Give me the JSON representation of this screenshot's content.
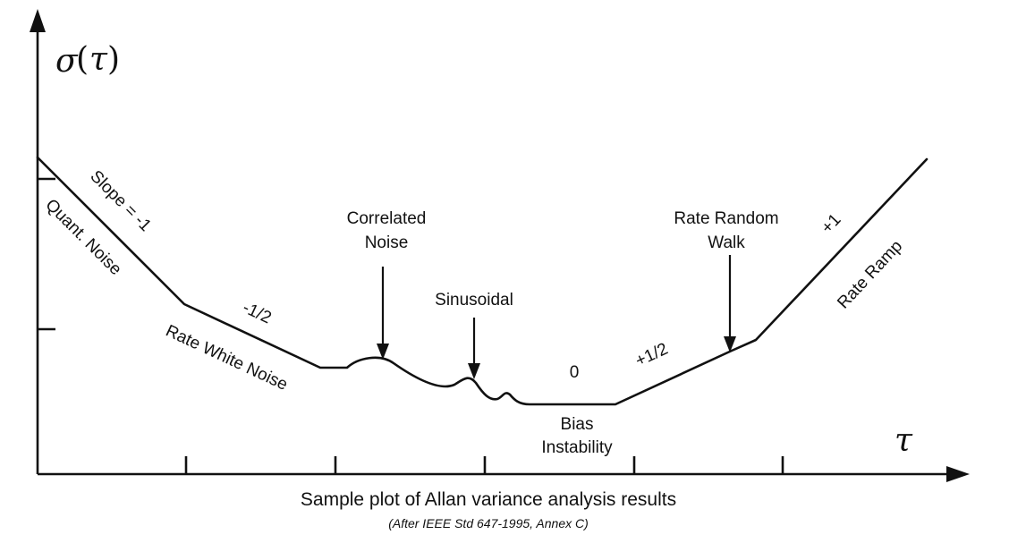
{
  "axes": {
    "y_symbol": "σ",
    "y_arg": "τ",
    "x_symbol": "τ"
  },
  "segments": {
    "slope_neg1": "Slope = -1",
    "quant_noise": "Quant. Noise",
    "slope_neg_half": "-1/2",
    "rate_white_noise": "Rate White Noise",
    "correlated_noise_1": "Correlated",
    "correlated_noise_2": "Noise",
    "sinusoidal": "Sinusoidal",
    "slope_zero": "0",
    "bias_instability_1": "Bias",
    "bias_instability_2": "Instability",
    "slope_pos_half": "+1/2",
    "rate_random_walk_1": "Rate Random",
    "rate_random_walk_2": "Walk",
    "slope_pos1": "+1",
    "rate_ramp": "Rate Ramp"
  },
  "caption": {
    "title": "Sample plot of Allan variance analysis results",
    "source": "(After IEEE Std 647-1995, Annex C)"
  }
}
